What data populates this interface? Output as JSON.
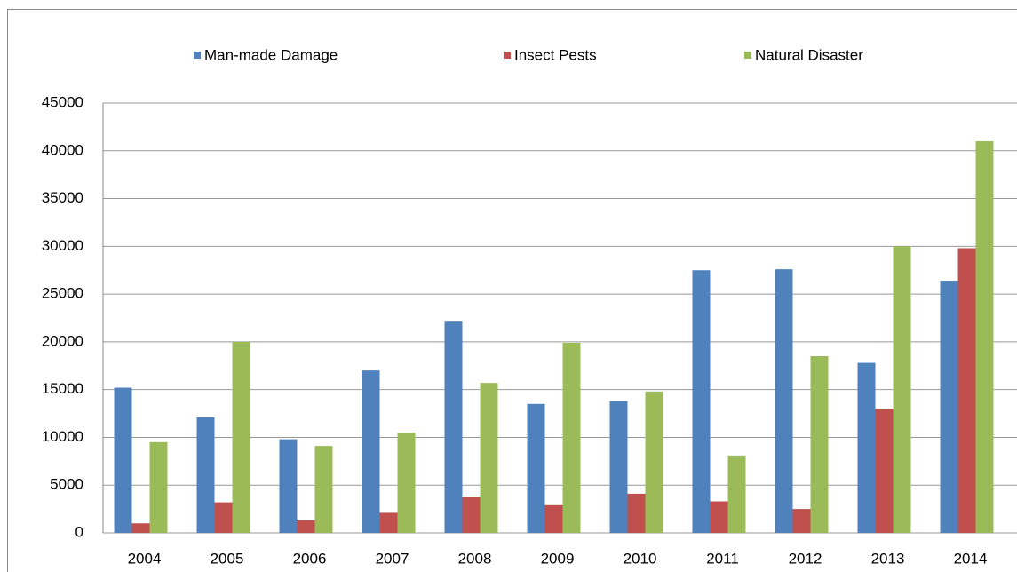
{
  "chart_data": {
    "type": "bar",
    "categories": [
      "2004",
      "2005",
      "2006",
      "2007",
      "2008",
      "2009",
      "2010",
      "2011",
      "2012",
      "2013",
      "2014"
    ],
    "series": [
      {
        "name": "Man-made Damage",
        "color": "#4f81bd",
        "values": [
          15200,
          12100,
          9800,
          17000,
          22200,
          13500,
          13800,
          27500,
          27600,
          17800,
          26400
        ]
      },
      {
        "name": "Insect Pests",
        "color": "#c0504d",
        "values": [
          1000,
          3200,
          1300,
          2100,
          3800,
          2900,
          4100,
          3300,
          2500,
          13000,
          29800
        ]
      },
      {
        "name": "Natural Disaster",
        "color": "#9bbb59",
        "values": [
          9500,
          20000,
          9100,
          10500,
          15700,
          19900,
          14800,
          8100,
          18500,
          30000,
          41000
        ]
      }
    ],
    "ylim": [
      0,
      45000
    ],
    "yticks": [
      0,
      5000,
      10000,
      15000,
      20000,
      25000,
      30000,
      35000,
      40000,
      45000
    ],
    "grid": true
  }
}
